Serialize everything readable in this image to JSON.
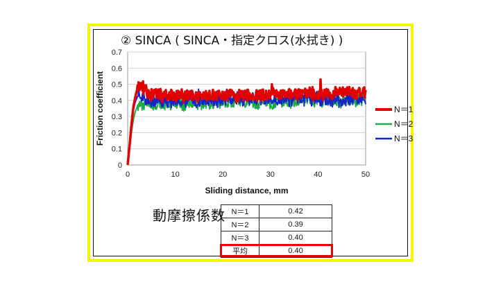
{
  "chart_data": {
    "type": "line",
    "title": "② SINCA ( SINCA・指定クロス(水拭き) )",
    "xlabel": "Sliding distance, mm",
    "ylabel": "Friction coefficient",
    "xlim": [
      0,
      50
    ],
    "ylim": [
      0,
      0.7
    ],
    "xticks": [
      0,
      10,
      20,
      30,
      40,
      50
    ],
    "yticks": [
      0,
      0.1,
      0.2,
      0.3,
      0.4,
      0.5,
      0.6,
      0.7
    ],
    "ytick_labels": [
      "0",
      "0.1",
      "0.2",
      "0.3",
      "0.4",
      "0.5",
      "0.6",
      "0.7"
    ],
    "grid": "horizontal",
    "legend": "right",
    "series": [
      {
        "name": "N＝1",
        "color": "#e00000",
        "width": 3.5,
        "x": [
          0,
          0.4,
          0.8,
          1.2,
          1.6,
          2.0,
          2.5,
          3.0,
          3.5,
          4,
          5,
          6,
          8,
          10,
          15,
          20,
          25,
          30,
          35,
          40,
          45,
          50
        ],
        "y": [
          0,
          0.12,
          0.25,
          0.36,
          0.42,
          0.47,
          0.5,
          0.49,
          0.47,
          0.45,
          0.44,
          0.43,
          0.43,
          0.43,
          0.43,
          0.43,
          0.43,
          0.44,
          0.44,
          0.44,
          0.45,
          0.45
        ]
      },
      {
        "name": "N＝2",
        "color": "#1faa4a",
        "width": 2,
        "x": [
          0,
          0.4,
          0.8,
          1.2,
          1.6,
          2.0,
          2.5,
          3.0,
          4,
          5,
          6,
          8,
          10,
          15,
          20,
          25,
          30,
          35,
          40,
          45,
          50
        ],
        "y": [
          0,
          0.1,
          0.2,
          0.28,
          0.33,
          0.36,
          0.37,
          0.38,
          0.38,
          0.38,
          0.38,
          0.38,
          0.38,
          0.38,
          0.39,
          0.39,
          0.39,
          0.4,
          0.4,
          0.4,
          0.4
        ]
      },
      {
        "name": "N＝3",
        "color": "#1525c8",
        "width": 2,
        "x": [
          0,
          0.4,
          0.8,
          1.2,
          1.6,
          2.0,
          2.5,
          3.0,
          4,
          5,
          6,
          8,
          10,
          15,
          20,
          25,
          30,
          35,
          40,
          45,
          50
        ],
        "y": [
          0,
          0.14,
          0.26,
          0.34,
          0.39,
          0.42,
          0.43,
          0.42,
          0.41,
          0.4,
          0.4,
          0.4,
          0.4,
          0.4,
          0.4,
          0.41,
          0.41,
          0.41,
          0.41,
          0.4,
          0.4
        ]
      }
    ]
  },
  "summary": {
    "label": "動摩擦係数",
    "rows": [
      {
        "name": "N＝1",
        "value": "0.42"
      },
      {
        "name": "N＝2",
        "value": "0.39"
      },
      {
        "name": "N＝3",
        "value": "0.40"
      },
      {
        "name": "平均",
        "value": "0.40"
      }
    ],
    "highlight_color": "#e00000"
  },
  "frame": {
    "border_color": "#f5f500"
  }
}
